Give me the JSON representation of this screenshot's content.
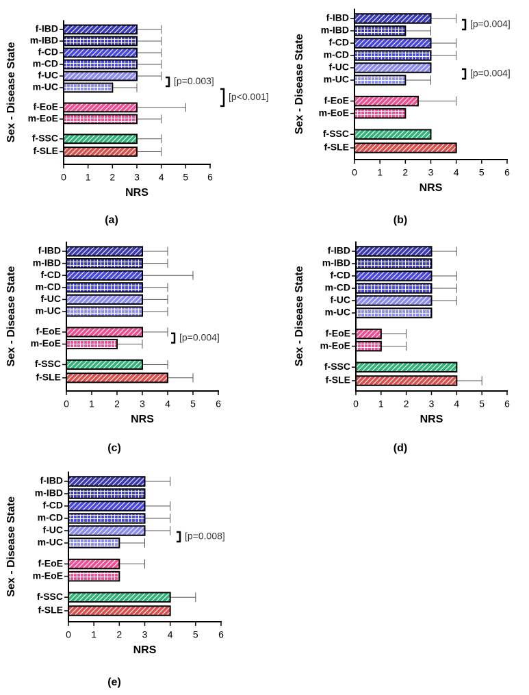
{
  "chart_data": [
    {
      "type": "bar",
      "orientation": "horizontal",
      "panel_label": "(a)",
      "x_label": "NRS",
      "y_label": "Sex - Disease State",
      "categories": [
        "f-IBD",
        "m-IBD",
        "f-CD",
        "m-CD",
        "f-UC",
        "m-UC",
        "f-EoE",
        "m-EoE",
        "f-SSC",
        "f-SLE"
      ],
      "values": [
        3,
        3,
        3,
        3,
        3,
        2,
        3,
        3,
        3,
        3
      ],
      "errors": [
        1,
        1,
        1,
        1,
        1,
        1,
        2,
        1,
        1,
        1
      ],
      "colors": [
        "#3a3ab8",
        "#3a3ab8",
        "#4848e0",
        "#4848e0",
        "#8c8cf0",
        "#8c8cf0",
        "#ec4f92",
        "#ec4f92",
        "#34b27a",
        "#d9514e"
      ],
      "patterns": [
        "hatch",
        "grid",
        "hatch",
        "grid",
        "hatch",
        "grid",
        "hatch",
        "grid",
        "hatch",
        "hatch"
      ],
      "xlim": [
        0,
        6
      ],
      "xticks": [
        0,
        1,
        2,
        3,
        4,
        5,
        6
      ],
      "annotations": [
        "[p=0.003]",
        "[p<0.001]"
      ]
    },
    {
      "type": "bar",
      "orientation": "horizontal",
      "panel_label": "(b)",
      "x_label": "NRS",
      "y_label": "Sex - Disease State",
      "categories": [
        "f-IBD",
        "m-IBD",
        "f-CD",
        "m-CD",
        "f-UC",
        "m-UC",
        "f-EoE",
        "m-EoE",
        "f-SSC",
        "f-SLE"
      ],
      "values": [
        3,
        2,
        3,
        3,
        3,
        2,
        2.5,
        2,
        3,
        4
      ],
      "errors": [
        1,
        1,
        1,
        1,
        0,
        1,
        1.5,
        0,
        0,
        0
      ],
      "colors": [
        "#3a3ab8",
        "#3a3ab8",
        "#4848e0",
        "#4848e0",
        "#8c8cf0",
        "#8c8cf0",
        "#ec4f92",
        "#ec4f92",
        "#34b27a",
        "#d9514e"
      ],
      "patterns": [
        "hatch",
        "grid",
        "hatch",
        "grid",
        "hatch",
        "grid",
        "hatch",
        "grid",
        "hatch",
        "hatch"
      ],
      "xlim": [
        0,
        6
      ],
      "xticks": [
        0,
        1,
        2,
        3,
        4,
        5,
        6
      ],
      "annotations": [
        "[p=0.004]",
        "[p=0.004]"
      ]
    },
    {
      "type": "bar",
      "orientation": "horizontal",
      "panel_label": "(c)",
      "x_label": "NRS",
      "y_label": "Sex - Disease State",
      "categories": [
        "f-IBD",
        "m-IBD",
        "f-CD",
        "m-CD",
        "f-UC",
        "m-UC",
        "f-EoE",
        "m-EoE",
        "f-SSC",
        "f-SLE"
      ],
      "values": [
        3,
        3,
        3,
        3,
        3,
        3,
        3,
        2,
        3,
        4
      ],
      "errors": [
        1,
        1,
        2,
        1,
        1,
        1,
        1,
        1,
        1,
        1
      ],
      "colors": [
        "#3a3ab8",
        "#3a3ab8",
        "#4848e0",
        "#4848e0",
        "#8c8cf0",
        "#8c8cf0",
        "#ec4f92",
        "#ec4f92",
        "#34b27a",
        "#d9514e"
      ],
      "patterns": [
        "hatch",
        "grid",
        "hatch",
        "grid",
        "hatch",
        "grid",
        "hatch",
        "grid",
        "hatch",
        "hatch"
      ],
      "xlim": [
        0,
        6
      ],
      "xticks": [
        0,
        1,
        2,
        3,
        4,
        5,
        6
      ],
      "annotations": [
        "[p=0.004]"
      ]
    },
    {
      "type": "bar",
      "orientation": "horizontal",
      "panel_label": "(d)",
      "x_label": "NRS",
      "y_label": "Sex - Disease State",
      "categories": [
        "f-IBD",
        "m-IBD",
        "f-CD",
        "m-CD",
        "f-UC",
        "m-UC",
        "f-EoE",
        "m-EoE",
        "f-SSC",
        "f-SLE"
      ],
      "values": [
        3,
        3,
        3,
        3,
        3,
        3,
        1,
        1,
        4,
        4
      ],
      "errors": [
        1,
        0,
        1,
        1,
        1,
        0,
        1,
        1,
        0,
        1
      ],
      "colors": [
        "#3a3ab8",
        "#3a3ab8",
        "#4848e0",
        "#4848e0",
        "#8c8cf0",
        "#8c8cf0",
        "#ec4f92",
        "#ec4f92",
        "#34b27a",
        "#d9514e"
      ],
      "patterns": [
        "hatch",
        "grid",
        "hatch",
        "grid",
        "hatch",
        "grid",
        "hatch",
        "grid",
        "hatch",
        "hatch"
      ],
      "xlim": [
        0,
        6
      ],
      "xticks": [
        0,
        1,
        2,
        3,
        4,
        5,
        6
      ],
      "annotations": []
    },
    {
      "type": "bar",
      "orientation": "horizontal",
      "panel_label": "(e)",
      "x_label": "NRS",
      "y_label": "Sex - Disease State",
      "categories": [
        "f-IBD",
        "m-IBD",
        "f-CD",
        "m-CD",
        "f-UC",
        "m-UC",
        "f-EoE",
        "m-EoE",
        "f-SSC",
        "f-SLE"
      ],
      "values": [
        3,
        3,
        3,
        3,
        3,
        2,
        2,
        2,
        4,
        4
      ],
      "errors": [
        1,
        0,
        1,
        1,
        1,
        1,
        1,
        0,
        1,
        0
      ],
      "colors": [
        "#3a3ab8",
        "#3a3ab8",
        "#4848e0",
        "#4848e0",
        "#8c8cf0",
        "#8c8cf0",
        "#ec4f92",
        "#ec4f92",
        "#34b27a",
        "#d9514e"
      ],
      "patterns": [
        "hatch",
        "grid",
        "hatch",
        "grid",
        "hatch",
        "grid",
        "hatch",
        "grid",
        "hatch",
        "hatch"
      ],
      "xlim": [
        0,
        6
      ],
      "xticks": [
        0,
        1,
        2,
        3,
        4,
        5,
        6
      ],
      "annotations": [
        "[p=0.008]"
      ]
    }
  ]
}
